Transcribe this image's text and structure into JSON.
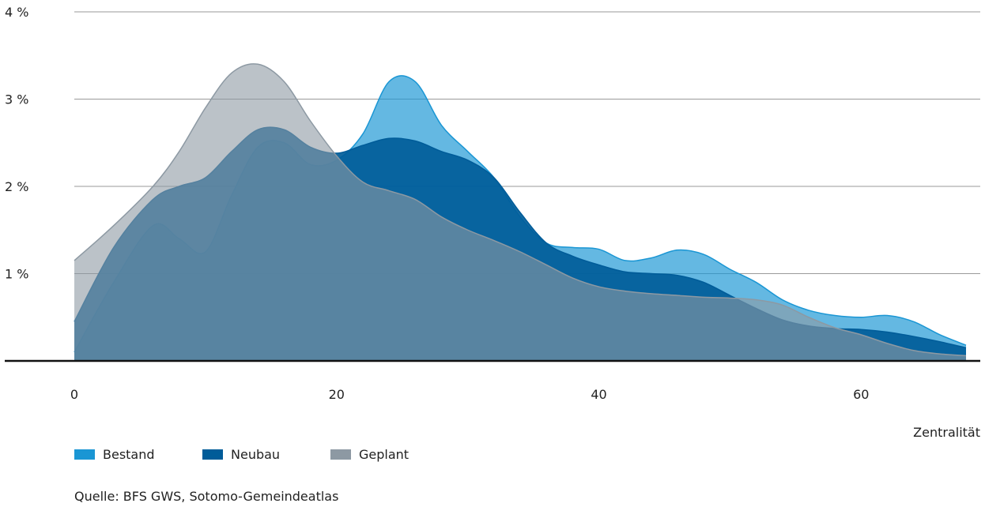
{
  "chart_data": {
    "type": "area",
    "xlabel": "Zentralität",
    "ylabel": "",
    "xlim": [
      0,
      68
    ],
    "ylim": [
      0,
      4
    ],
    "x_ticks": [
      0,
      20,
      40,
      60
    ],
    "y_ticks": [
      1,
      2,
      3,
      4
    ],
    "y_tick_labels": [
      "1 %",
      "2 %",
      "3 %",
      "4 %"
    ],
    "grid": "horizontal",
    "legend_position": "bottom-left",
    "series": [
      {
        "name": "Bestand",
        "color": "#1a96d4",
        "points": [
          [
            0,
            0.1
          ],
          [
            3,
            0.9
          ],
          [
            6,
            1.55
          ],
          [
            8,
            1.4
          ],
          [
            10,
            1.25
          ],
          [
            12,
            1.9
          ],
          [
            14,
            2.45
          ],
          [
            16,
            2.5
          ],
          [
            18,
            2.25
          ],
          [
            20,
            2.3
          ],
          [
            22,
            2.6
          ],
          [
            24,
            3.2
          ],
          [
            26,
            3.2
          ],
          [
            28,
            2.7
          ],
          [
            30,
            2.4
          ],
          [
            32,
            2.1
          ],
          [
            34,
            1.65
          ],
          [
            36,
            1.35
          ],
          [
            38,
            1.3
          ],
          [
            40,
            1.28
          ],
          [
            42,
            1.15
          ],
          [
            44,
            1.18
          ],
          [
            46,
            1.27
          ],
          [
            48,
            1.22
          ],
          [
            50,
            1.05
          ],
          [
            52,
            0.9
          ],
          [
            54,
            0.7
          ],
          [
            56,
            0.58
          ],
          [
            58,
            0.52
          ],
          [
            60,
            0.5
          ],
          [
            62,
            0.52
          ],
          [
            64,
            0.45
          ],
          [
            66,
            0.3
          ],
          [
            68,
            0.18
          ]
        ]
      },
      {
        "name": "Neubau",
        "color": "#005c99",
        "points": [
          [
            0,
            0.45
          ],
          [
            3,
            1.3
          ],
          [
            6,
            1.85
          ],
          [
            8,
            2.0
          ],
          [
            10,
            2.1
          ],
          [
            12,
            2.4
          ],
          [
            14,
            2.65
          ],
          [
            16,
            2.65
          ],
          [
            18,
            2.45
          ],
          [
            20,
            2.38
          ],
          [
            22,
            2.47
          ],
          [
            24,
            2.55
          ],
          [
            26,
            2.52
          ],
          [
            28,
            2.4
          ],
          [
            30,
            2.3
          ],
          [
            32,
            2.1
          ],
          [
            34,
            1.7
          ],
          [
            36,
            1.35
          ],
          [
            38,
            1.2
          ],
          [
            40,
            1.1
          ],
          [
            42,
            1.02
          ],
          [
            44,
            1.0
          ],
          [
            46,
            0.98
          ],
          [
            48,
            0.9
          ],
          [
            50,
            0.75
          ],
          [
            52,
            0.6
          ],
          [
            54,
            0.47
          ],
          [
            56,
            0.4
          ],
          [
            58,
            0.37
          ],
          [
            60,
            0.36
          ],
          [
            62,
            0.33
          ],
          [
            64,
            0.28
          ],
          [
            66,
            0.22
          ],
          [
            68,
            0.15
          ]
        ]
      },
      {
        "name": "Geplant",
        "color": "#8d99a3",
        "points": [
          [
            0,
            1.15
          ],
          [
            3,
            1.55
          ],
          [
            6,
            2.0
          ],
          [
            8,
            2.4
          ],
          [
            10,
            2.9
          ],
          [
            12,
            3.3
          ],
          [
            14,
            3.4
          ],
          [
            16,
            3.2
          ],
          [
            18,
            2.75
          ],
          [
            20,
            2.35
          ],
          [
            22,
            2.05
          ],
          [
            24,
            1.95
          ],
          [
            26,
            1.85
          ],
          [
            28,
            1.65
          ],
          [
            30,
            1.5
          ],
          [
            32,
            1.38
          ],
          [
            34,
            1.25
          ],
          [
            36,
            1.1
          ],
          [
            38,
            0.95
          ],
          [
            40,
            0.85
          ],
          [
            42,
            0.8
          ],
          [
            44,
            0.77
          ],
          [
            46,
            0.75
          ],
          [
            48,
            0.73
          ],
          [
            50,
            0.72
          ],
          [
            52,
            0.7
          ],
          [
            54,
            0.64
          ],
          [
            56,
            0.5
          ],
          [
            58,
            0.38
          ],
          [
            60,
            0.3
          ],
          [
            62,
            0.2
          ],
          [
            64,
            0.12
          ],
          [
            66,
            0.08
          ],
          [
            68,
            0.06
          ]
        ]
      }
    ]
  },
  "legend": [
    {
      "label": "Bestand",
      "color": "#1a96d4"
    },
    {
      "label": "Neubau",
      "color": "#005c99"
    },
    {
      "label": "Geplant",
      "color": "#8d99a3"
    }
  ],
  "source": "Quelle: BFS GWS, Sotomo-Gemeindeatlas"
}
